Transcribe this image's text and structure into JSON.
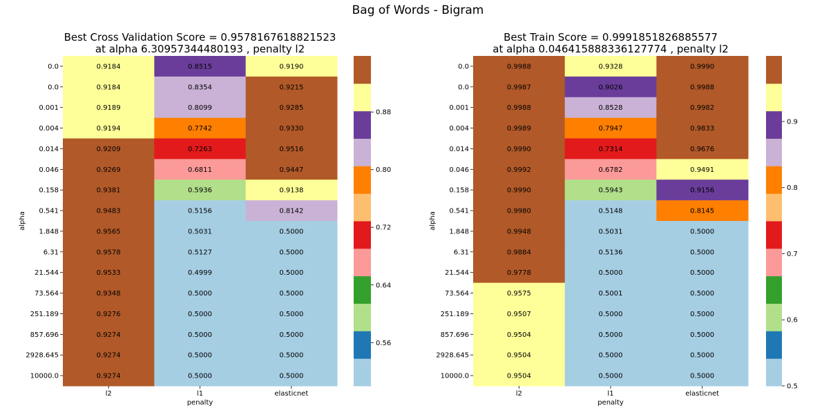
{
  "figure": {
    "suptitle": "Bag of Words - Bigram"
  },
  "chart_data": [
    {
      "type": "heatmap",
      "title_lines": [
        "Best Cross Validation Score = 0.9578167618821523",
        "at alpha 6.30957344480193 , penalty l2"
      ],
      "xlabel": "penalty",
      "ylabel": "alpha",
      "x_categories": [
        "l2",
        "l1",
        "elasticnet"
      ],
      "y_categories": [
        "0.0",
        "0.0",
        "0.001",
        "0.004",
        "0.014",
        "0.046",
        "0.158",
        "0.541",
        "1.848",
        "6.31",
        "21.544",
        "73.564",
        "251.189",
        "857.696",
        "2928.645",
        "10000.0"
      ],
      "values": [
        [
          0.9184,
          0.8515,
          0.919
        ],
        [
          0.9184,
          0.8354,
          0.9215
        ],
        [
          0.9189,
          0.8099,
          0.9285
        ],
        [
          0.9194,
          0.7742,
          0.933
        ],
        [
          0.9209,
          0.7263,
          0.9516
        ],
        [
          0.9269,
          0.6811,
          0.9447
        ],
        [
          0.9381,
          0.5936,
          0.9138
        ],
        [
          0.9483,
          0.5156,
          0.8142
        ],
        [
          0.9565,
          0.5031,
          0.5
        ],
        [
          0.9578,
          0.5127,
          0.5
        ],
        [
          0.9533,
          0.4999,
          0.5
        ],
        [
          0.9348,
          0.5,
          0.5
        ],
        [
          0.9276,
          0.5,
          0.5
        ],
        [
          0.9274,
          0.5,
          0.5
        ],
        [
          0.9274,
          0.5,
          0.5
        ],
        [
          0.9274,
          0.5,
          0.5
        ]
      ],
      "colormap": "Paired",
      "vmin": 0.4999,
      "vmax": 0.9578,
      "colorbar_ticks": [
        "0.88",
        "0.80",
        "0.72",
        "0.64",
        "0.56"
      ]
    },
    {
      "type": "heatmap",
      "title_lines": [
        "Best Train Score = 0.9991851826885577",
        "at alpha 0.046415888336127774 , penalty l2"
      ],
      "xlabel": "penalty",
      "ylabel": "alpha",
      "x_categories": [
        "l2",
        "l1",
        "elasticnet"
      ],
      "y_categories": [
        "0.0",
        "0.0",
        "0.001",
        "0.004",
        "0.014",
        "0.046",
        "0.158",
        "0.541",
        "1.848",
        "6.31",
        "21.544",
        "73.564",
        "251.189",
        "857.696",
        "2928.645",
        "10000.0"
      ],
      "values": [
        [
          0.9988,
          0.9328,
          0.999
        ],
        [
          0.9987,
          0.9026,
          0.9988
        ],
        [
          0.9988,
          0.8528,
          0.9982
        ],
        [
          0.9989,
          0.7947,
          0.9833
        ],
        [
          0.999,
          0.7314,
          0.9676
        ],
        [
          0.9992,
          0.6782,
          0.9491
        ],
        [
          0.999,
          0.5943,
          0.9156
        ],
        [
          0.998,
          0.5148,
          0.8145
        ],
        [
          0.9948,
          0.5031,
          0.5
        ],
        [
          0.9884,
          0.5136,
          0.5
        ],
        [
          0.9778,
          0.5,
          0.5
        ],
        [
          0.9575,
          0.5001,
          0.5
        ],
        [
          0.9507,
          0.5,
          0.5
        ],
        [
          0.9504,
          0.5,
          0.5
        ],
        [
          0.9504,
          0.5,
          0.5
        ],
        [
          0.9504,
          0.5,
          0.5
        ]
      ],
      "colormap": "Paired",
      "vmin": 0.5,
      "vmax": 0.9992,
      "colorbar_ticks": [
        "0.9",
        "0.8",
        "0.7",
        "0.6",
        "0.5"
      ]
    }
  ],
  "palette": [
    "#a6cee3",
    "#1f78b4",
    "#b2df8a",
    "#33a02c",
    "#fb9a99",
    "#e31a1c",
    "#fdbf6f",
    "#ff7f00",
    "#cab2d6",
    "#6a3d9a",
    "#ffff99",
    "#b15928"
  ]
}
